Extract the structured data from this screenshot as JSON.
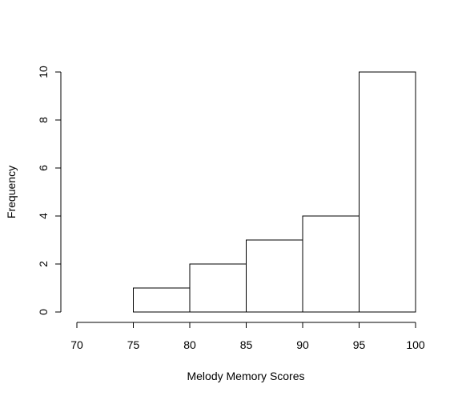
{
  "chart_data": {
    "type": "bar",
    "title": "",
    "xlabel": "Melody Memory Scores",
    "ylabel": "Frequency",
    "bins": [
      {
        "from": 75,
        "to": 80,
        "value": 1
      },
      {
        "from": 80,
        "to": 85,
        "value": 2
      },
      {
        "from": 85,
        "to": 90,
        "value": 3
      },
      {
        "from": 90,
        "to": 95,
        "value": 4
      },
      {
        "from": 95,
        "to": 100,
        "value": 10
      }
    ],
    "xlim": [
      70,
      100
    ],
    "ylim": [
      0,
      10
    ],
    "x_ticks": [
      "70",
      "75",
      "80",
      "85",
      "90",
      "95",
      "100"
    ],
    "y_ticks": [
      "0",
      "2",
      "4",
      "6",
      "8",
      "10"
    ],
    "grid": false,
    "bar_fill": "#ffffff",
    "bar_stroke": "#000000"
  }
}
